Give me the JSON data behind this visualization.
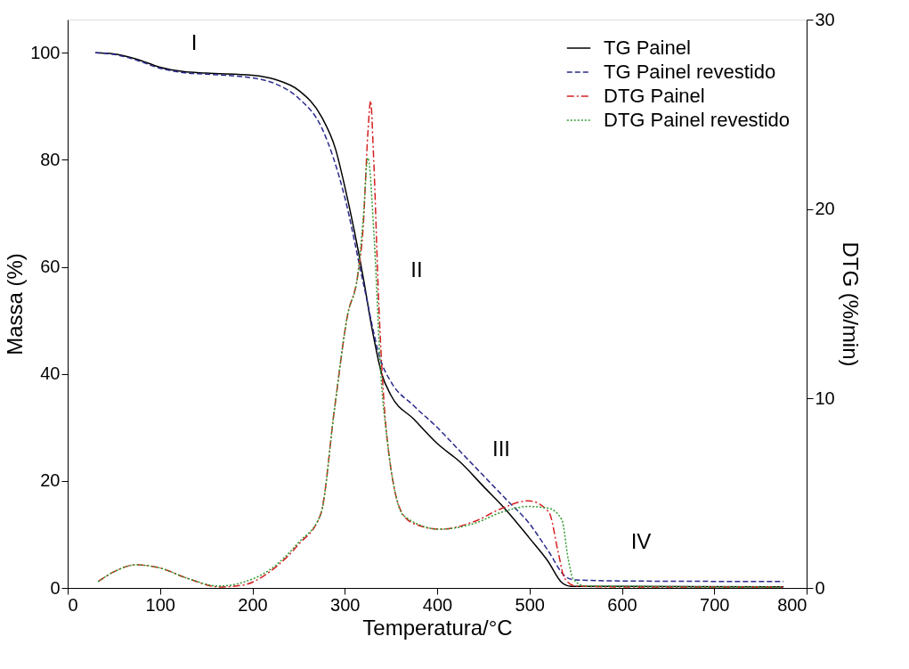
{
  "chart_data": {
    "type": "line",
    "xlabel": "Temperatura/°C",
    "ylabel": "Massa (%)",
    "y2label": "DTG (%/min)",
    "xlim": [
      0,
      800
    ],
    "xticks": [
      0,
      100,
      200,
      300,
      400,
      500,
      600,
      700,
      800
    ],
    "ylim": [
      0,
      106.2
    ],
    "yticks": [
      0,
      20,
      40,
      60,
      80,
      100
    ],
    "y2lim": [
      0,
      30
    ],
    "y2ticks": [
      0,
      10,
      20,
      30
    ],
    "grid": false,
    "legend": "top right",
    "marker": "none",
    "series": [
      {
        "name": "TG Painel",
        "color": "#000000",
        "line_style": "solid",
        "x": [
          30,
          50,
          75,
          100,
          125,
          150,
          200,
          225,
          250,
          275,
          290,
          300,
          310,
          320,
          330,
          340,
          350,
          375,
          400,
          425,
          450,
          475,
          500,
          520,
          535,
          545,
          600,
          775
        ],
        "values": [
          100,
          99.8,
          98.8,
          97.3,
          96.5,
          96.2,
          95.8,
          95.0,
          93.0,
          88,
          82,
          75,
          67,
          58,
          48,
          40,
          36,
          31.5,
          27,
          23.5,
          19,
          14.5,
          9.3,
          5,
          1,
          0.3,
          0.3,
          0.2
        ]
      },
      {
        "name": "TG Painel revestido",
        "color": "#2a2a8c",
        "line_style": "dashed",
        "x": [
          30,
          50,
          75,
          100,
          125,
          150,
          200,
          225,
          250,
          275,
          300,
          320,
          340,
          350,
          375,
          400,
          425,
          450,
          475,
          500,
          520,
          540,
          550,
          600,
          775
        ],
        "values": [
          100,
          99.7,
          98.6,
          97.1,
          96.3,
          96.0,
          95.3,
          94.2,
          91.5,
          86,
          73,
          57,
          42,
          38.5,
          34,
          30,
          25.5,
          21,
          16.5,
          12,
          7,
          2,
          1.5,
          1.3,
          1.2
        ]
      },
      {
        "name": "DTG Painel",
        "color": "#d42020",
        "line_style": "dashdot",
        "axis": "y2",
        "x": [
          33,
          50,
          74,
          100,
          130,
          164,
          190,
          220,
          250,
          274,
          289,
          303,
          314,
          320,
          325,
          328,
          331,
          337,
          346,
          364,
          380,
          403,
          440,
          470,
          499,
          521,
          531,
          538,
          550,
          600,
          774
        ],
        "values": [
          0.33,
          0.85,
          1.22,
          1.05,
          0.5,
          0.05,
          0.15,
          0.9,
          2.3,
          3.9,
          9.5,
          14.4,
          16.5,
          19.1,
          24,
          25.7,
          23,
          14.8,
          7.8,
          3.8,
          3.3,
          3.1,
          3.5,
          4.2,
          4.6,
          4.0,
          1.9,
          0.5,
          0.1,
          0.05,
          0.05
        ]
      },
      {
        "name": "DTG Painel revestido",
        "color": "#2e9a2e",
        "line_style": "dotted",
        "axis": "y2",
        "x": [
          33,
          50,
          74,
          100,
          130,
          164,
          190,
          220,
          250,
          274,
          289,
          303,
          314,
          320,
          325,
          332,
          339,
          346,
          364,
          403,
          440,
          470,
          499,
          521,
          535,
          542,
          547,
          560,
          774
        ],
        "values": [
          0.33,
          0.85,
          1.22,
          1.05,
          0.5,
          0.1,
          0.3,
          1.0,
          2.4,
          3.9,
          9.5,
          14.4,
          16.5,
          19.5,
          22.7,
          18.3,
          11.3,
          7.8,
          3.8,
          3.1,
          3.4,
          4.0,
          4.3,
          4.2,
          3.6,
          1.5,
          0.5,
          0.1,
          0.05
        ]
      }
    ],
    "annotations": [
      "I",
      "II",
      "III",
      "IV"
    ]
  }
}
